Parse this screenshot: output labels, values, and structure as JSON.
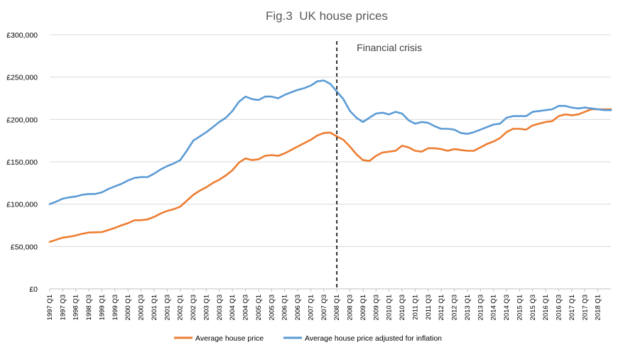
{
  "chart_data": {
    "type": "line",
    "title": "Fig.3  UK house prices",
    "ylim": [
      0,
      300000
    ],
    "yticks": [
      "£0",
      "£50,000",
      "£100,000",
      "£150,000",
      "£200,000",
      "£250,000",
      "£300,000"
    ],
    "grid": true,
    "legend_position": "bottom",
    "x_ticks": [
      "1997 Q1",
      "1997 Q3",
      "1998 Q1",
      "1998 Q3",
      "1999 Q1",
      "1999 Q3",
      "2000 Q1",
      "2000 Q3",
      "2001 Q1",
      "2001 Q3",
      "2002 Q1",
      "2002 Q3",
      "2003 Q1",
      "2003 Q3",
      "2004 Q1",
      "2004 Q3",
      "2005 Q1",
      "2005 Q3",
      "2006 Q1",
      "2006 Q3",
      "2007 Q1",
      "2007 Q3",
      "2008 Q1",
      "2008 Q3",
      "2009 Q1",
      "2009 Q3",
      "2010 Q1",
      "2010 Q3",
      "2011 Q1",
      "2011 Q3",
      "2012 Q1",
      "2012 Q3",
      "2013 Q1",
      "2013 Q3",
      "2014 Q1",
      "2014 Q3",
      "2015 Q1",
      "2015 Q3",
      "2016 Q1",
      "2016 Q3",
      "2017 Q1",
      "2017 Q3",
      "2018 Q1"
    ],
    "annotation": {
      "label": "Financial crisis",
      "x": "2008 Q1"
    },
    "series": [
      {
        "name": "Average house price",
        "color": "#ed7d31",
        "values": [
          55500,
          58000,
          60500,
          61500,
          63000,
          65000,
          66500,
          66800,
          67000,
          69500,
          72000,
          75000,
          77500,
          81000,
          81000,
          82000,
          85000,
          89000,
          92000,
          94000,
          97000,
          104000,
          111000,
          116000,
          120000,
          125000,
          129000,
          134000,
          140000,
          149000,
          154000,
          152000,
          153000,
          157000,
          158000,
          157000,
          160000,
          164000,
          168000,
          172000,
          176000,
          181000,
          184000,
          184500,
          180000,
          176000,
          168000,
          159000,
          152000,
          151000,
          157000,
          161000,
          162000,
          163000,
          169000,
          167000,
          163000,
          162000,
          166000,
          166000,
          165000,
          163000,
          165000,
          164000,
          163000,
          163000,
          167000,
          171000,
          174000,
          178000,
          185000,
          189000,
          189000,
          188000,
          193000,
          195000,
          197000,
          198000,
          204000,
          206000,
          205000,
          206000,
          209000,
          212000,
          212000,
          212000,
          212000
        ]
      },
      {
        "name": "Average house price adjusted for inflation",
        "color": "#5b9bd5",
        "values": [
          100000,
          103000,
          106500,
          108000,
          109000,
          111000,
          112000,
          112000,
          114000,
          118000,
          121000,
          124000,
          128000,
          131000,
          132000,
          132000,
          136000,
          141000,
          145000,
          148000,
          152000,
          163000,
          175000,
          180000,
          185000,
          191000,
          197000,
          202000,
          210000,
          221000,
          227000,
          224000,
          223000,
          227000,
          227000,
          225000,
          229000,
          232000,
          235000,
          237000,
          240000,
          245000,
          246000,
          242000,
          233000,
          224000,
          210000,
          202000,
          197000,
          202000,
          207000,
          208000,
          206000,
          209000,
          207000,
          199000,
          195000,
          197000,
          196000,
          192000,
          189000,
          189000,
          188000,
          184000,
          183000,
          185000,
          188000,
          191000,
          194000,
          195000,
          202000,
          204000,
          204000,
          204000,
          209000,
          210000,
          211000,
          212000,
          216000,
          216000,
          214000,
          213000,
          214000,
          213000,
          212000,
          211000,
          211000
        ]
      }
    ]
  }
}
